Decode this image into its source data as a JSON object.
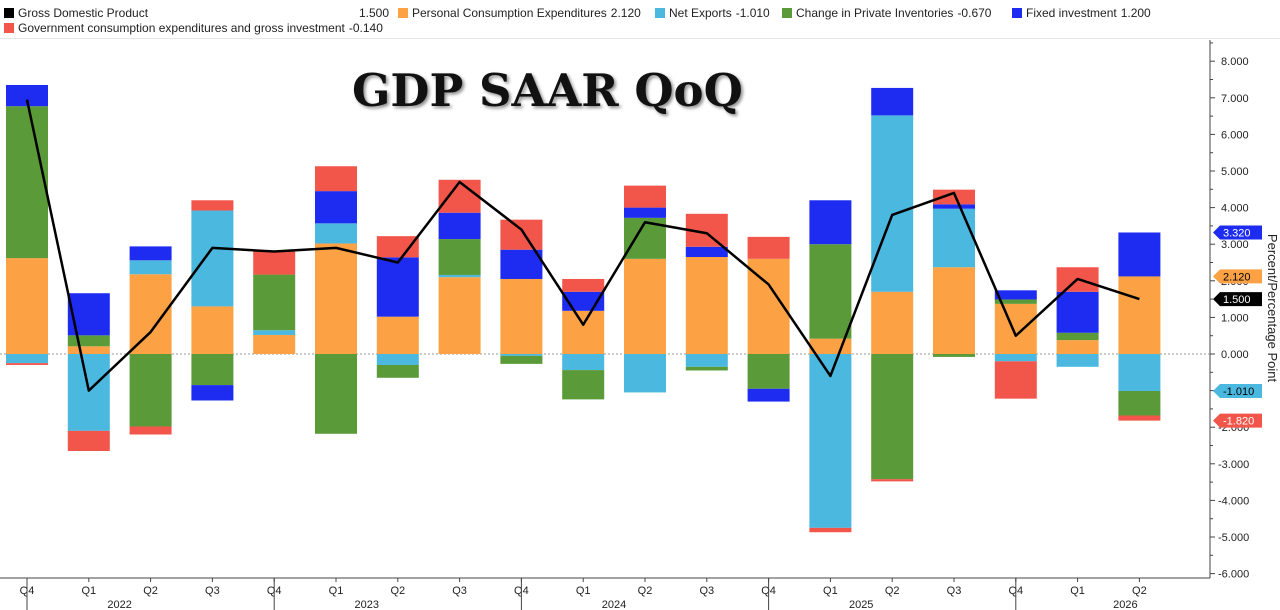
{
  "legend": {
    "items": [
      {
        "label": "Gross Domestic Product",
        "value": "1.500",
        "color": "#000000"
      },
      {
        "label": "Personal Consumption Expenditures",
        "value": "2.120",
        "color": "#fca244"
      },
      {
        "label": "Net Exports",
        "value": "-1.010",
        "color": "#4bb8e0"
      },
      {
        "label": "Change in Private Inventories",
        "value": "-0.670",
        "color": "#5a9a38"
      },
      {
        "label": "Fixed investment",
        "value": "1.200",
        "color": "#1e2bf0"
      },
      {
        "label": "Government consumption expenditures and gross investment",
        "value": "-0.140",
        "color": "#f2564b"
      }
    ]
  },
  "chart_data": {
    "type": "bar",
    "title": "GDP SAAR QoQ",
    "ylabel": "Percent/Percentage Point",
    "ylim": [
      -6,
      8.5
    ],
    "yticks": [
      "8.000",
      "7.000",
      "6.000",
      "5.000",
      "4.000",
      "3.000",
      "2.000",
      "1.000",
      "0.000",
      "-1.000",
      "-2.000",
      "-3.000",
      "-4.000",
      "-5.000",
      "-6.000"
    ],
    "categories": [
      "Q4",
      "Q1",
      "Q2",
      "Q3",
      "Q4",
      "Q1",
      "Q2",
      "Q3",
      "Q4",
      "Q1",
      "Q2",
      "Q3",
      "Q4",
      "Q1",
      "Q2",
      "Q3",
      "Q4",
      "Q1",
      "Q2"
    ],
    "year_labels": [
      {
        "text": "2022",
        "category_index": 2
      },
      {
        "text": "2023",
        "category_index": 6
      },
      {
        "text": "2024",
        "category_index": 10
      },
      {
        "text": "2025",
        "category_index": 14
      },
      {
        "text": "2026",
        "category_index": 18
      }
    ],
    "stacked": true,
    "series": [
      {
        "name": "Personal Consumption Expenditures",
        "color": "#fca244",
        "values": [
          2.62,
          0.21,
          2.18,
          1.3,
          0.52,
          3.02,
          1.02,
          2.1,
          2.05,
          1.18,
          2.6,
          2.65,
          2.6,
          0.42,
          1.7,
          2.37,
          1.37,
          0.38,
          2.12
        ]
      },
      {
        "name": "Net Exports",
        "color": "#4bb8e0",
        "values": [
          -0.25,
          -2.1,
          0.38,
          2.62,
          0.13,
          0.55,
          -0.3,
          0.06,
          -0.05,
          -0.44,
          -1.05,
          -0.35,
          0.0,
          -4.75,
          4.82,
          1.6,
          -0.2,
          -0.35,
          -1.01
        ]
      },
      {
        "name": "Change in Private Inventories",
        "color": "#5a9a38",
        "values": [
          4.15,
          0.3,
          -1.98,
          -0.85,
          1.52,
          -2.18,
          -0.35,
          0.98,
          -0.22,
          -0.8,
          1.12,
          -0.1,
          -0.95,
          2.58,
          -3.42,
          -0.08,
          0.12,
          0.2,
          -0.67
        ]
      },
      {
        "name": "Fixed investment",
        "color": "#1e2bf0",
        "values": [
          0.58,
          1.15,
          0.38,
          -0.42,
          0.0,
          0.88,
          1.62,
          0.72,
          0.8,
          0.52,
          0.28,
          0.28,
          -0.35,
          1.2,
          0.75,
          0.12,
          0.25,
          1.12,
          1.2
        ]
      },
      {
        "name": "Government consumption expenditures and gross investment",
        "color": "#f2564b",
        "values": [
          -0.05,
          -0.55,
          -0.22,
          0.28,
          0.65,
          0.68,
          0.58,
          0.9,
          0.82,
          0.35,
          0.6,
          0.9,
          0.6,
          -0.12,
          -0.06,
          0.4,
          -1.02,
          0.67,
          -0.14
        ]
      }
    ],
    "line": {
      "name": "Gross Domestic Product",
      "color": "#000000",
      "values": [
        6.95,
        -1.0,
        0.6,
        2.9,
        2.8,
        2.9,
        2.5,
        4.7,
        3.4,
        0.8,
        3.6,
        3.3,
        1.9,
        -0.6,
        3.8,
        4.4,
        0.5,
        2.05,
        1.5
      ]
    },
    "end_labels": [
      {
        "text": "3.320",
        "value": 3.32,
        "color": "#1e2bf0",
        "text_color": "#ffffff"
      },
      {
        "text": "2.120",
        "value": 2.12,
        "color": "#fca244",
        "text_color": "#000000"
      },
      {
        "text": "1.500",
        "value": 1.5,
        "color": "#000000",
        "text_color": "#ffffff"
      },
      {
        "text": "-1.010",
        "value": -1.01,
        "color": "#4bb8e0",
        "text_color": "#000000"
      },
      {
        "text": "-1.820",
        "value": -1.82,
        "color": "#f2564b",
        "text_color": "#ffffff"
      }
    ],
    "grid": false,
    "legend_position": "top"
  }
}
